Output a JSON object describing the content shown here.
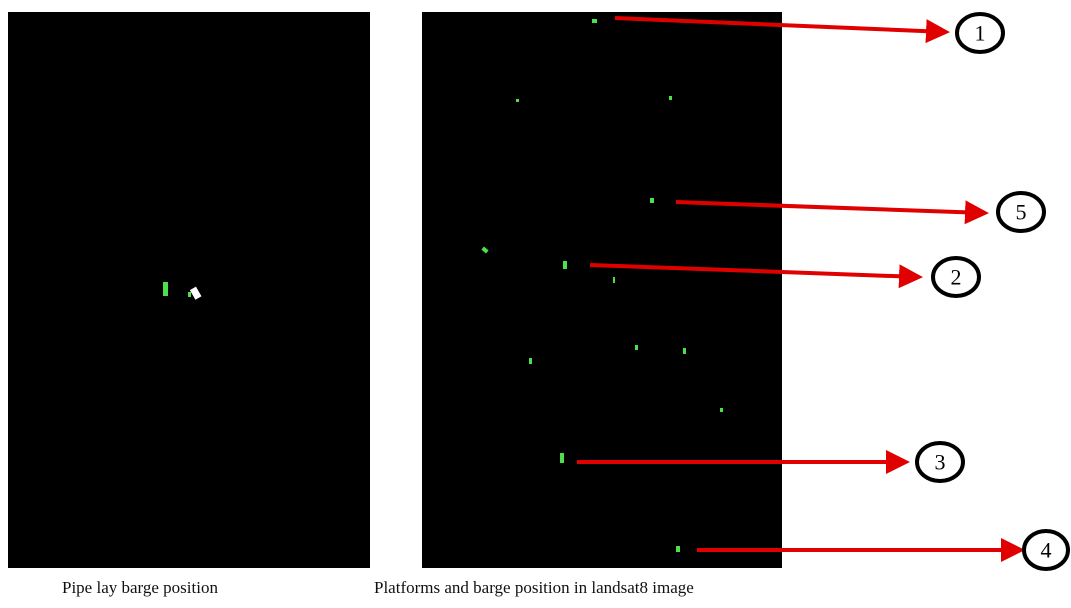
{
  "panels": [
    {
      "caption": "Pipe lay barge position"
    },
    {
      "caption": "Platforms and barge position in landsat8 image"
    }
  ],
  "callouts": [
    {
      "label": "1"
    },
    {
      "label": "5"
    },
    {
      "label": "2"
    },
    {
      "label": "3"
    },
    {
      "label": "4"
    }
  ]
}
